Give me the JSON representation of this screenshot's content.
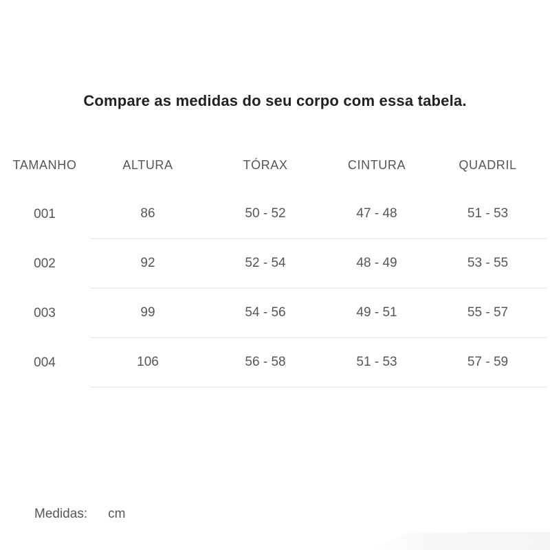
{
  "title": "Compare as medidas do seu corpo com essa tabela.",
  "table": {
    "columns": [
      "TAMANHO",
      "ALTURA",
      "TÓRAX",
      "CINTURA",
      "QUADRIL"
    ],
    "rows": [
      {
        "cells": [
          "001",
          "86",
          "50 - 52",
          "47 - 48",
          "51 - 53"
        ]
      },
      {
        "cells": [
          "002",
          "92",
          "52 - 54",
          "48 - 49",
          "53 - 55"
        ]
      },
      {
        "cells": [
          "003",
          "99",
          "54 - 56",
          "49 - 51",
          "55 - 57"
        ]
      },
      {
        "cells": [
          "004",
          "106",
          "56 - 58",
          "51 - 53",
          "57 - 59"
        ]
      }
    ]
  },
  "footer": {
    "label": "Medidas:",
    "unit": "cm"
  },
  "colors": {
    "title_text": "#212121",
    "table_text": "#55565a",
    "divider": "#f1f1f1",
    "background": "#ffffff"
  }
}
